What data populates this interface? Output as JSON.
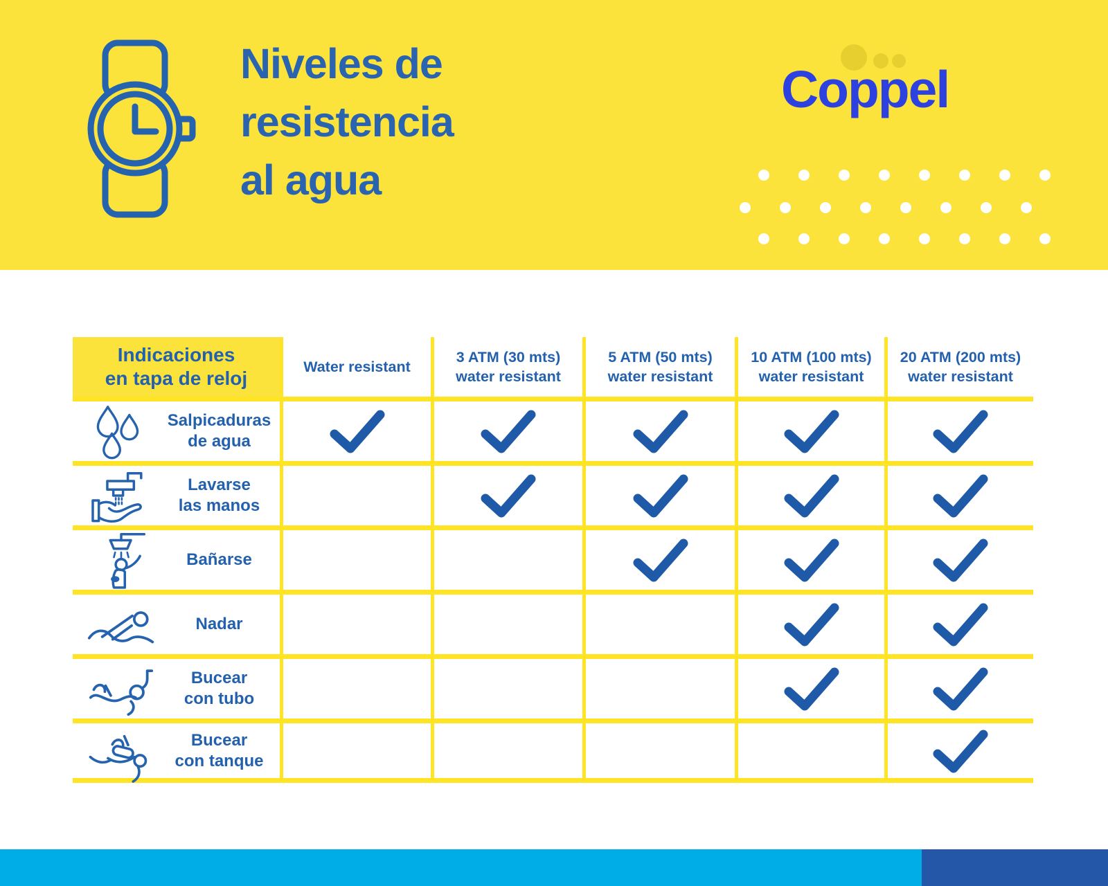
{
  "header": {
    "title": "Niveles de\nresistencia\nal agua",
    "logo": "Coppel",
    "watch_icon": "watch-icon",
    "logo_dots_count": 3,
    "white_dot_rows": 3,
    "white_dots_per_row": 8
  },
  "table": {
    "corner_header": "Indicaciones\nen tapa de reloj",
    "columns": [
      {
        "label": "Water resistant"
      },
      {
        "label": "3 ATM (30 mts)\nwater resistant"
      },
      {
        "label": "5 ATM (50 mts)\nwater resistant"
      },
      {
        "label": "10 ATM (100 mts)\nwater resistant"
      },
      {
        "label": "20 ATM (200 mts)\nwater resistant"
      }
    ],
    "rows": [
      {
        "icon": "water-drops-icon",
        "label": "Salpicaduras\nde agua",
        "checks": [
          true,
          true,
          true,
          true,
          true
        ]
      },
      {
        "icon": "hand-washing-icon",
        "label": "Lavarse\nlas manos",
        "checks": [
          false,
          true,
          true,
          true,
          true
        ]
      },
      {
        "icon": "shower-icon",
        "label": "Bañarse",
        "checks": [
          false,
          false,
          true,
          true,
          true
        ]
      },
      {
        "icon": "swimmer-icon",
        "label": "Nadar",
        "checks": [
          false,
          false,
          false,
          true,
          true
        ]
      },
      {
        "icon": "snorkeling-icon",
        "label": "Bucear\ncon tubo",
        "checks": [
          false,
          false,
          false,
          true,
          true
        ]
      },
      {
        "icon": "scuba-diving-icon",
        "label": "Bucear\ncon tanque",
        "checks": [
          false,
          false,
          false,
          false,
          true
        ]
      }
    ]
  },
  "colors": {
    "band_yellow": "#FBE33C",
    "line_yellow": "#FFE426",
    "title_blue": "#2A64B0",
    "text_blue": "#2361AE",
    "logo_blue": "#2C41DF",
    "check_blue": "#1F5AA8",
    "icon_blue": "#2563AE",
    "logo_dot_yellow": "#E7CF2F",
    "bar_light_blue": "#00ADE6",
    "bar_dark_blue": "#2557A8",
    "white": "#FFFFFF"
  },
  "chart_data": {
    "type": "table",
    "title": "Niveles de resistencia al agua",
    "row_header": "Indicaciones en tapa de reloj",
    "columns": [
      "Water resistant",
      "3 ATM (30 mts) water resistant",
      "5 ATM (50 mts) water resistant",
      "10 ATM (100 mts) water resistant",
      "20 ATM (200 mts) water resistant"
    ],
    "rows": [
      "Salpicaduras de agua",
      "Lavarse las manos",
      "Bañarse",
      "Nadar",
      "Bucear con tubo",
      "Bucear con tanque"
    ],
    "matrix": [
      [
        1,
        1,
        1,
        1,
        1
      ],
      [
        0,
        1,
        1,
        1,
        1
      ],
      [
        0,
        0,
        1,
        1,
        1
      ],
      [
        0,
        0,
        0,
        1,
        1
      ],
      [
        0,
        0,
        0,
        1,
        1
      ],
      [
        0,
        0,
        0,
        0,
        1
      ]
    ]
  }
}
